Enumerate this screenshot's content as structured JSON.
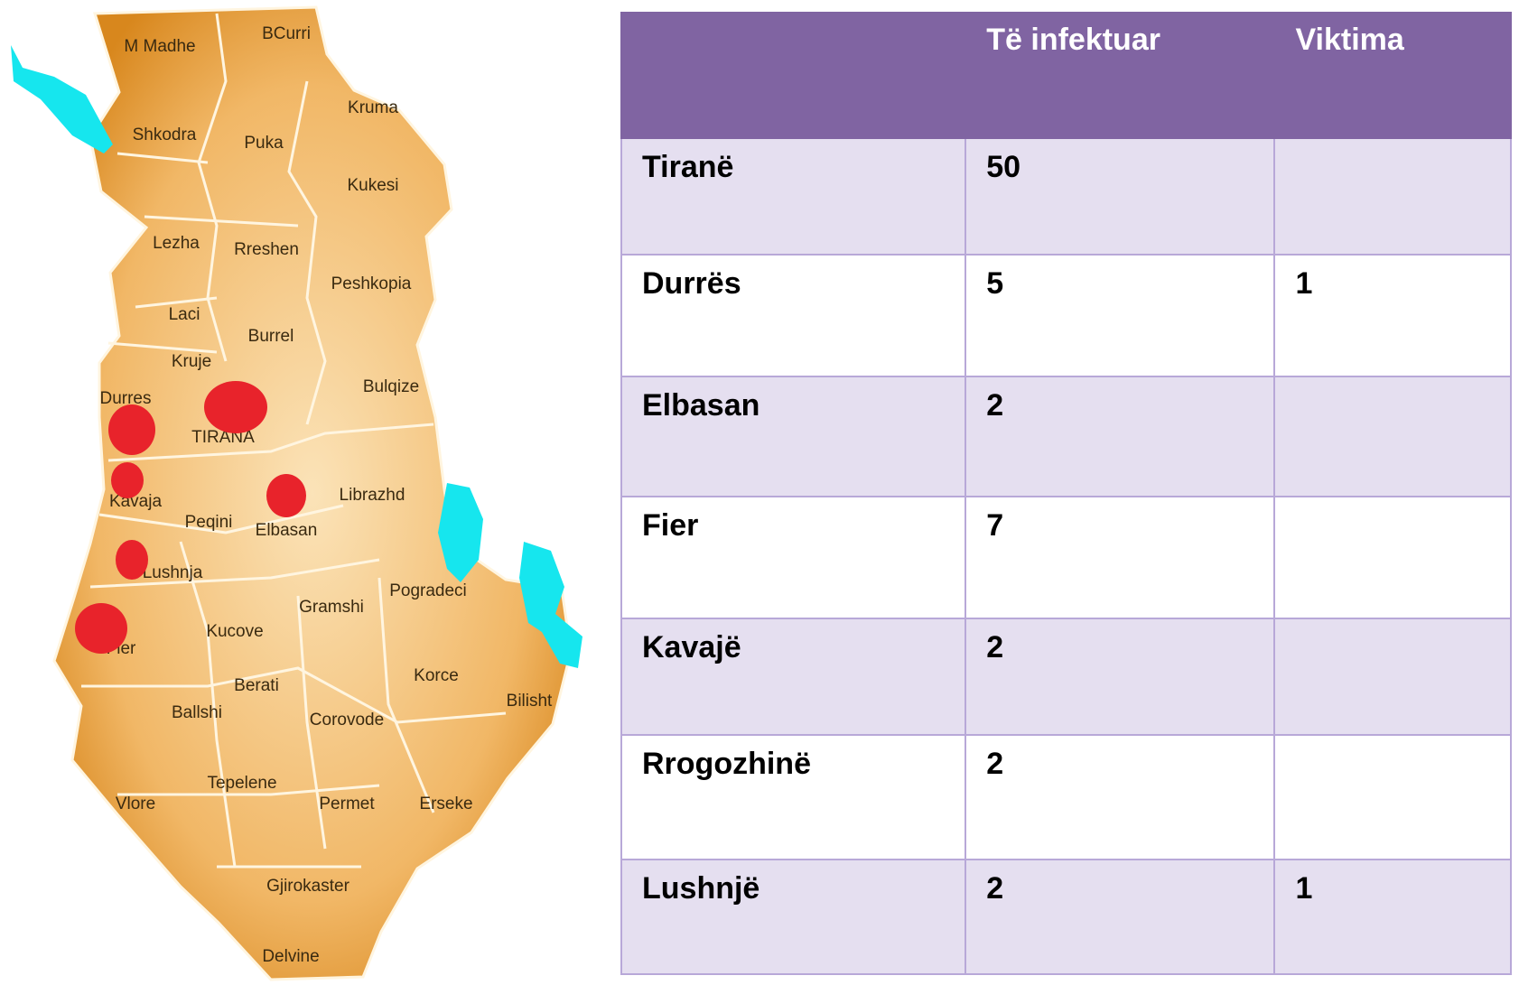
{
  "map": {
    "labels": [
      "M Madhe",
      "BCurri",
      "Kruma",
      "Shkodra",
      "Puka",
      "Kukesi",
      "Lezha",
      "Rreshen",
      "Peshkopia",
      "Laci",
      "Burrel",
      "Kruje",
      "Bulqize",
      "Durres",
      "TIRANA",
      "Librazhd",
      "Kavaja",
      "Peqini",
      "Elbasan",
      "Lushnja",
      "Pogradeci",
      "Gramshi",
      "Fier",
      "Kucove",
      "Korce",
      "Berati",
      "Ballshi",
      "Bilisht",
      "Corovode",
      "Tepelene",
      "Vlore",
      "Permet",
      "Erseke",
      "Gjirokaster",
      "Delvine"
    ]
  },
  "table": {
    "columns": [
      "Të infektuar",
      "Viktima"
    ],
    "rows": [
      [
        "Tiranë",
        50,
        null
      ],
      [
        "Durrës",
        5,
        1
      ],
      [
        "Elbasan",
        2,
        null
      ],
      [
        "Fier",
        7,
        null
      ],
      [
        "Kavajë",
        2,
        null
      ],
      [
        "Rrogozhinë",
        2,
        null
      ],
      [
        "Lushnjë",
        2,
        1
      ]
    ]
  }
}
